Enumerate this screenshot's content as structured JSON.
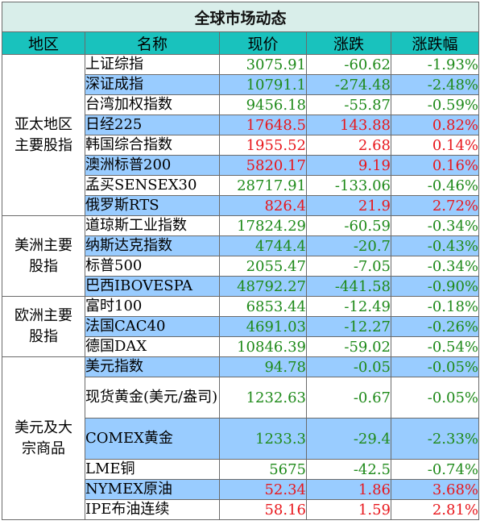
{
  "title": "全球市场动态",
  "headers": {
    "region": "地区",
    "name": "名称",
    "price": "现价",
    "change": "涨跌",
    "change_pct": "涨跌幅"
  },
  "groups": [
    {
      "label_lines": [
        "亚太地区",
        "主要股指"
      ],
      "rows": [
        {
          "name": "上证综指",
          "price": "3075.91",
          "change": "-60.62",
          "pct": "-1.93%",
          "dir": "down"
        },
        {
          "name": "深证成指",
          "price": "10791.1",
          "change": "-274.48",
          "pct": "-2.48%",
          "dir": "down"
        },
        {
          "name": "台湾加权指数",
          "price": "9456.18",
          "change": "-55.87",
          "pct": "-0.59%",
          "dir": "down"
        },
        {
          "name": "日经225",
          "price": "17648.5",
          "change": "143.88",
          "pct": "0.82%",
          "dir": "up"
        },
        {
          "name": "韩国综合指数",
          "price": "1955.52",
          "change": "2.68",
          "pct": "0.14%",
          "dir": "up"
        },
        {
          "name": "澳洲标普200",
          "price": "5820.17",
          "change": "9.19",
          "pct": "0.16%",
          "dir": "up"
        },
        {
          "name": "孟买SENSEX30",
          "price": "28717.91",
          "change": "-133.06",
          "pct": "-0.46%",
          "dir": "down"
        },
        {
          "name": "俄罗斯RTS",
          "price": "826.4",
          "change": "21.9",
          "pct": "2.72%",
          "dir": "up"
        }
      ]
    },
    {
      "label_lines": [
        "美洲主要",
        "股指"
      ],
      "rows": [
        {
          "name": "道琼斯工业指数",
          "price": "17824.29",
          "change": "-60.59",
          "pct": "-0.34%",
          "dir": "down"
        },
        {
          "name": "纳斯达克指数",
          "price": "4744.4",
          "change": "-20.7",
          "pct": "-0.43%",
          "dir": "down"
        },
        {
          "name": "标普500",
          "price": "2055.47",
          "change": "-7.05",
          "pct": "-0.34%",
          "dir": "down"
        },
        {
          "name": "巴西IBOVESPA",
          "price": "48792.27",
          "change": "-441.58",
          "pct": "-0.90%",
          "dir": "down"
        }
      ]
    },
    {
      "label_lines": [
        "欧洲主要",
        "股指"
      ],
      "rows": [
        {
          "name": "富时100",
          "price": "6853.44",
          "change": "-12.49",
          "pct": "-0.18%",
          "dir": "down"
        },
        {
          "name": "法国CAC40",
          "price": "4691.03",
          "change": "-12.27",
          "pct": "-0.26%",
          "dir": "down"
        },
        {
          "name": "德国DAX",
          "price": "10846.39",
          "change": "-59.02",
          "pct": "-0.54%",
          "dir": "down"
        }
      ]
    },
    {
      "label_lines": [
        "美元及大",
        "宗商品"
      ],
      "rows": [
        {
          "name": "美元指数",
          "price": "94.78",
          "change": "-0.05",
          "pct": "-0.05%",
          "dir": "down"
        },
        {
          "name": "现货黄金(美元/盎司)",
          "price": "1232.63",
          "change": "-0.67",
          "pct": "-0.05%",
          "dir": "down",
          "tall": true
        },
        {
          "name": "COMEX黄金",
          "price": "1233.3",
          "change": "-29.4",
          "pct": "-2.33%",
          "dir": "down",
          "tall": true
        },
        {
          "name": "LME铜",
          "price": "5675",
          "change": "-42.5",
          "pct": "-0.74%",
          "dir": "down"
        },
        {
          "name": "NYMEX原油",
          "price": "52.34",
          "change": "1.86",
          "pct": "3.68%",
          "dir": "up"
        },
        {
          "name": "IPE布油连续",
          "price": "58.16",
          "change": "1.59",
          "pct": "2.81%",
          "dir": "up"
        }
      ]
    }
  ],
  "colors": {
    "up": "#e8171c",
    "down": "#1f8a1a",
    "header_bg": "#19c2bd",
    "title_bg": "#d9eeea",
    "alt_row_bg": "#99ccff"
  }
}
